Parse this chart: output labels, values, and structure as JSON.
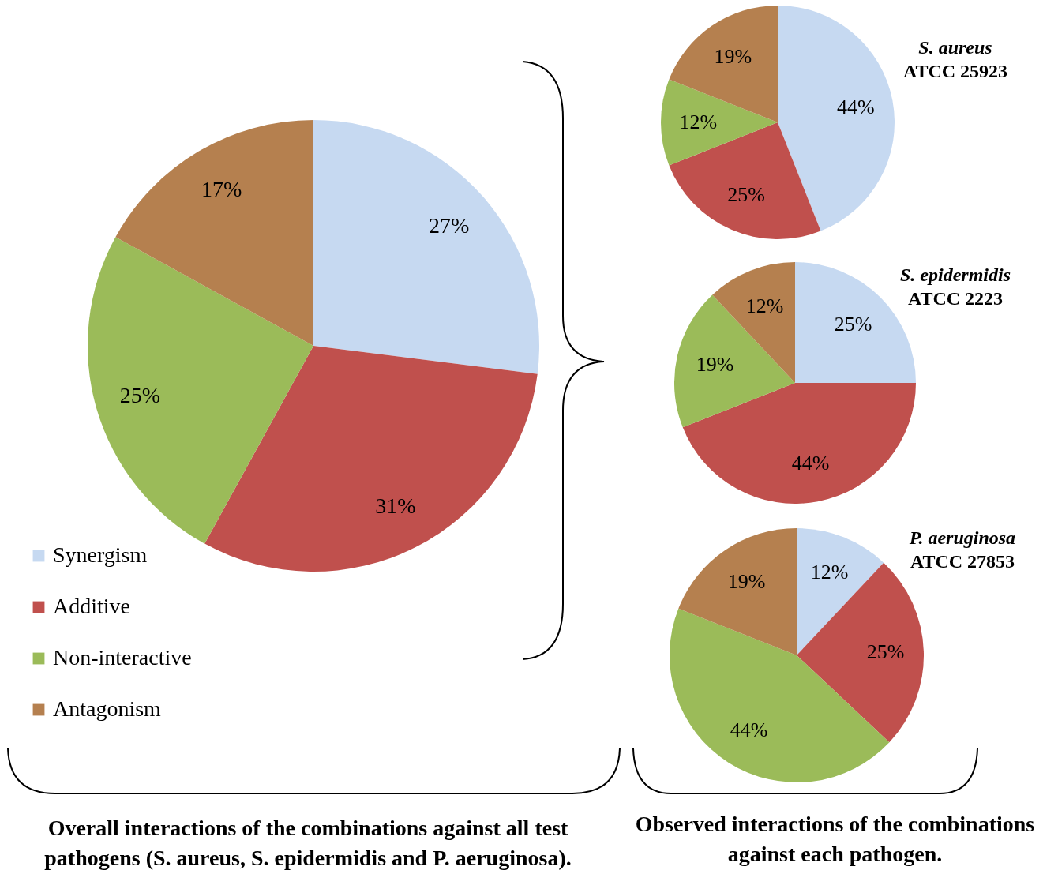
{
  "chart_data": [
    {
      "type": "pie",
      "categories": [
        "Synergism",
        "Additive",
        "Non-interactive",
        "Antagonism"
      ],
      "values": [
        27,
        31,
        25,
        17
      ],
      "value_labels": [
        "27%",
        "31%",
        "25%",
        "17%"
      ],
      "colors": [
        "#c6d9f1",
        "#c0504d",
        "#9bbb59",
        "#b5804f"
      ],
      "legend": "bottom left",
      "annotations": [
        "Overall interactions of the combinations against all test pathogens (S. aureus, S. epidermidis and P. aeruginosa)."
      ]
    },
    {
      "type": "pie",
      "title": "S. aureus",
      "subtitle": "ATCC 25923",
      "categories": [
        null,
        null,
        null,
        null
      ],
      "values": [
        44,
        25,
        12,
        19
      ],
      "value_labels": [
        "44%",
        "25%",
        "12%",
        "19%"
      ],
      "colors": [
        "#c6d9f1",
        "#c0504d",
        "#9bbb59",
        "#b5804f"
      ]
    },
    {
      "type": "pie",
      "title": "S. epidermidis",
      "subtitle": "ATCC 2223",
      "categories": [
        null,
        null,
        null,
        null
      ],
      "values": [
        25,
        44,
        19,
        12
      ],
      "value_labels": [
        "25%",
        "44%",
        "19%",
        "12%"
      ],
      "colors": [
        "#c6d9f1",
        "#c0504d",
        "#9bbb59",
        "#b5804f"
      ]
    },
    {
      "type": "pie",
      "title": "P. aeruginosa",
      "subtitle": "ATCC 27853",
      "categories": [
        null,
        null,
        null,
        null
      ],
      "values": [
        12,
        25,
        44,
        19
      ],
      "value_labels": [
        "12%",
        "25%",
        "44%",
        "19%"
      ],
      "colors": [
        "#c6d9f1",
        "#c0504d",
        "#9bbb59",
        "#b5804f"
      ],
      "annotations": [
        "Observed interactions of the combinations against each pathogen."
      ]
    }
  ]
}
